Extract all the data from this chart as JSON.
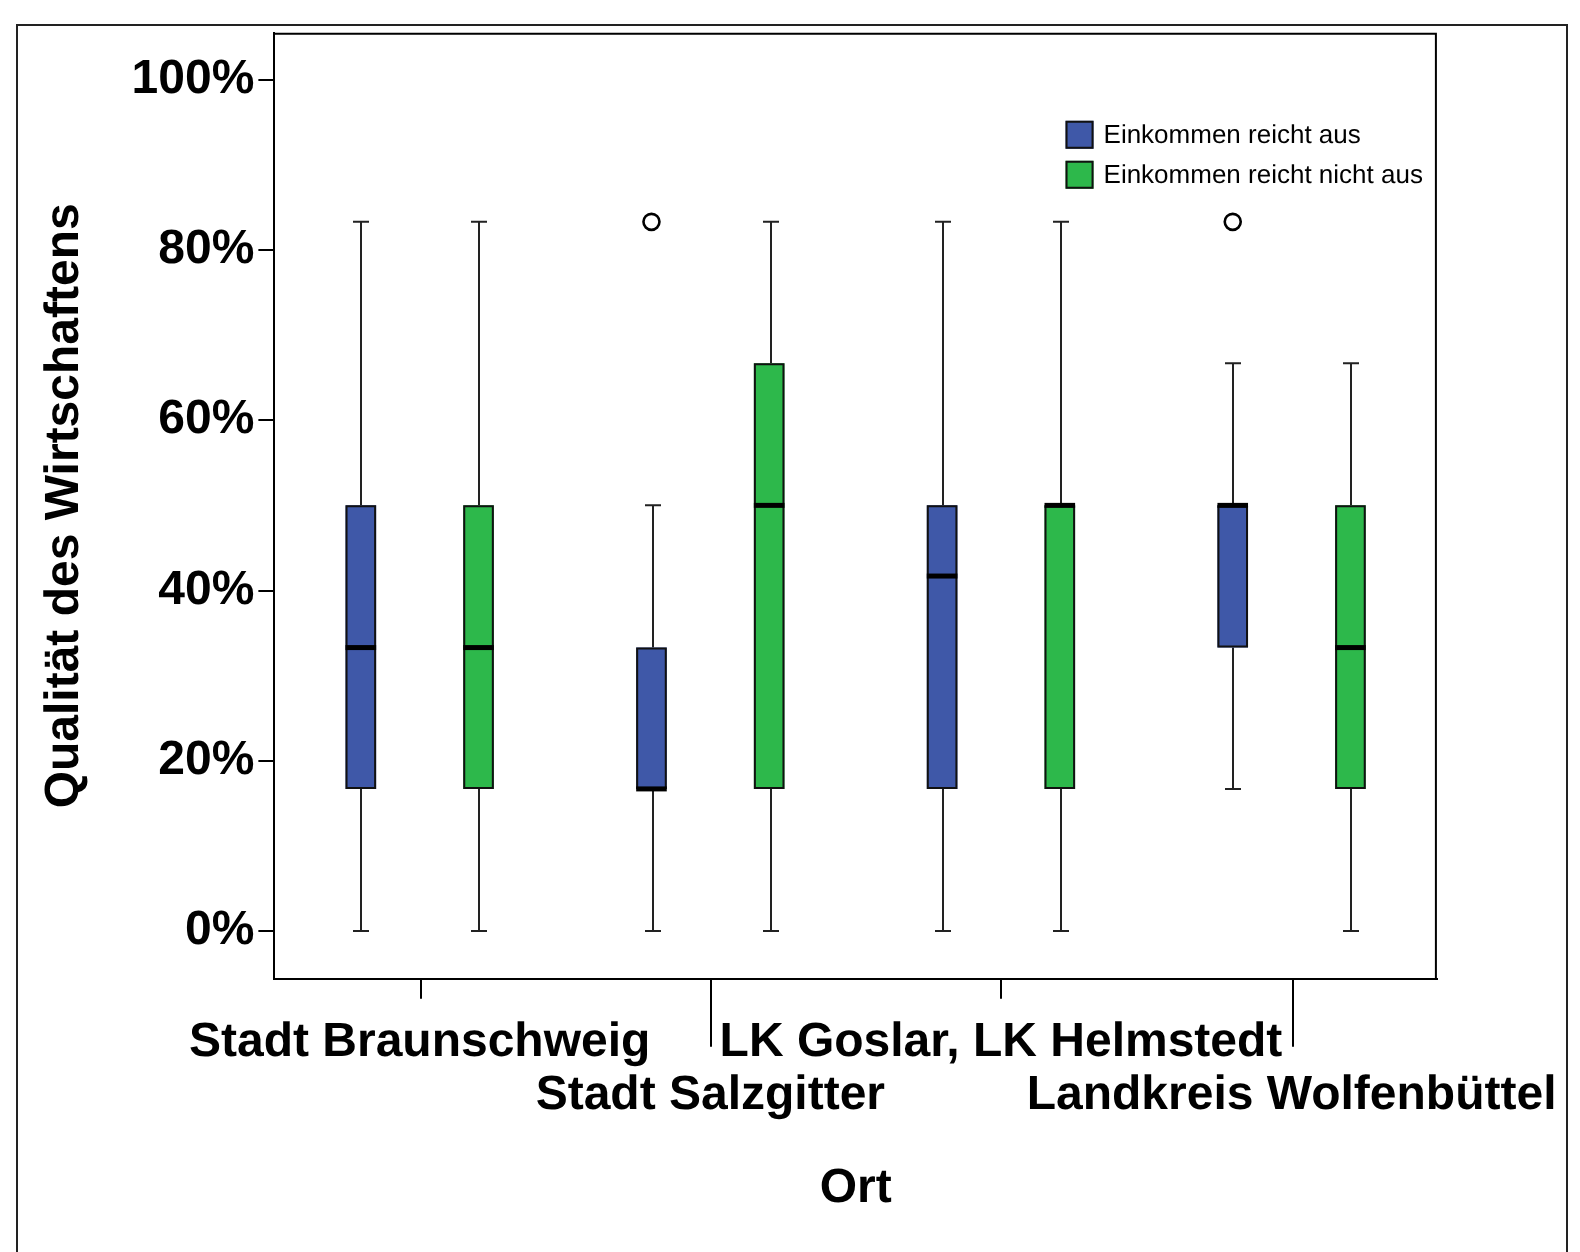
{
  "chart_data": {
    "type": "box",
    "xlabel": "Ort",
    "ylabel": "Qualität des Wirtschaftens",
    "categories": [
      "Stadt Braunschweig",
      "Stadt Salzgitter",
      "LK Goslar, LK Helmstedt",
      "Landkreis Wolfenbüttel"
    ],
    "series": [
      {
        "name": "Einkommen reicht aus",
        "color": "#3f58a8",
        "boxes": [
          {
            "low": 0,
            "q1": 16.7,
            "median": 33.3,
            "q3": 50,
            "high": 83.3
          },
          {
            "low": 0,
            "q1": 16.7,
            "median": 16.7,
            "q3": 33.3,
            "high": 50,
            "outliers": [
              83.3
            ]
          },
          {
            "low": 0,
            "q1": 16.7,
            "median": 41.7,
            "q3": 50,
            "high": 83.3
          },
          {
            "low": 16.7,
            "q1": 33.3,
            "median": 50,
            "q3": 50,
            "high": 66.7,
            "outliers": [
              83.3
            ]
          }
        ]
      },
      {
        "name": "Einkommen reicht nicht aus",
        "color": "#2db84b",
        "boxes": [
          {
            "low": 0,
            "q1": 16.7,
            "median": 33.3,
            "q3": 50,
            "high": 83.3
          },
          {
            "low": 0,
            "q1": 16.7,
            "median": 50,
            "q3": 66.7,
            "high": 83.3
          },
          {
            "low": 0,
            "q1": 16.7,
            "median": 50,
            "q3": 50,
            "high": 83.3
          },
          {
            "low": 0,
            "q1": 16.7,
            "median": 33.3,
            "q3": 50,
            "high": 66.7
          }
        ]
      }
    ],
    "ylim": [
      -5.6,
      105.5
    ],
    "yticks": [
      {
        "value": 0,
        "label": "0%"
      },
      {
        "value": 20,
        "label": "20%"
      },
      {
        "value": 40,
        "label": "40%"
      },
      {
        "value": 60,
        "label": "60%"
      },
      {
        "value": 80,
        "label": "80%"
      },
      {
        "value": 100,
        "label": "100%"
      }
    ],
    "legend": "top right"
  }
}
